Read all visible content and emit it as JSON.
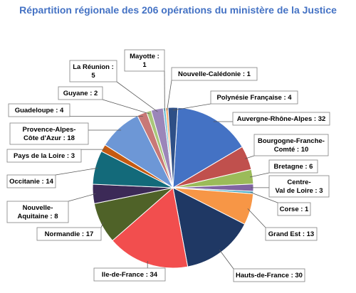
{
  "chart_data": {
    "type": "pie",
    "title": "Répartition régionale des 206 opérations du ministère de la Justice",
    "title_color": "#4472c4",
    "slices": [
      {
        "label": "Auvergne-Rhône-Alpes : 32",
        "value": 32,
        "color": "#4472c4"
      },
      {
        "label": "Bourgogne-Franche-Comté : 10",
        "value": 10,
        "color": "#c0504d"
      },
      {
        "label": "Bretagne : 6",
        "value": 6,
        "color": "#9bbb59"
      },
      {
        "label": "Centre-Val de Loire : 3",
        "value": 3,
        "color": "#8064a2"
      },
      {
        "label": "Corse : 1",
        "value": 1,
        "color": "#4bacc6"
      },
      {
        "label": "Grand Est : 13",
        "value": 13,
        "color": "#f79646"
      },
      {
        "label": "Hauts-de-France : 30",
        "value": 30,
        "color": "#1f3864"
      },
      {
        "label": "Ile-de-France : 34",
        "value": 34,
        "color": "#f24e4e"
      },
      {
        "label": "Normandie : 17",
        "value": 17,
        "color": "#4f6228"
      },
      {
        "label": "Nouvelle-Aquitaine : 8",
        "value": 8,
        "color": "#3c2a57"
      },
      {
        "label": "Occitanie : 14",
        "value": 14,
        "color": "#136a7a"
      },
      {
        "label": "Pays de la Loire : 3",
        "value": 3,
        "color": "#c55a11"
      },
      {
        "label": "Provence-Alpes-Côte d'Azur : 18",
        "value": 18,
        "color": "#6d97d6"
      },
      {
        "label": "Guadeloupe : 4",
        "value": 4,
        "color": "#c87876"
      },
      {
        "label": "Guyane : 2",
        "value": 2,
        "color": "#a9c77a"
      },
      {
        "label": "La Réunion : 5",
        "value": 5,
        "color": "#9b86b9"
      },
      {
        "label": "Mayotte : 1",
        "value": 1,
        "color": "#6dc1d6"
      },
      {
        "label": "Nouvelle-Calédonie : 1",
        "value": 1,
        "color": "#f9ad6d"
      },
      {
        "label": "Polynésie Française : 4",
        "value": 4,
        "color": "#2e4f86"
      }
    ]
  }
}
